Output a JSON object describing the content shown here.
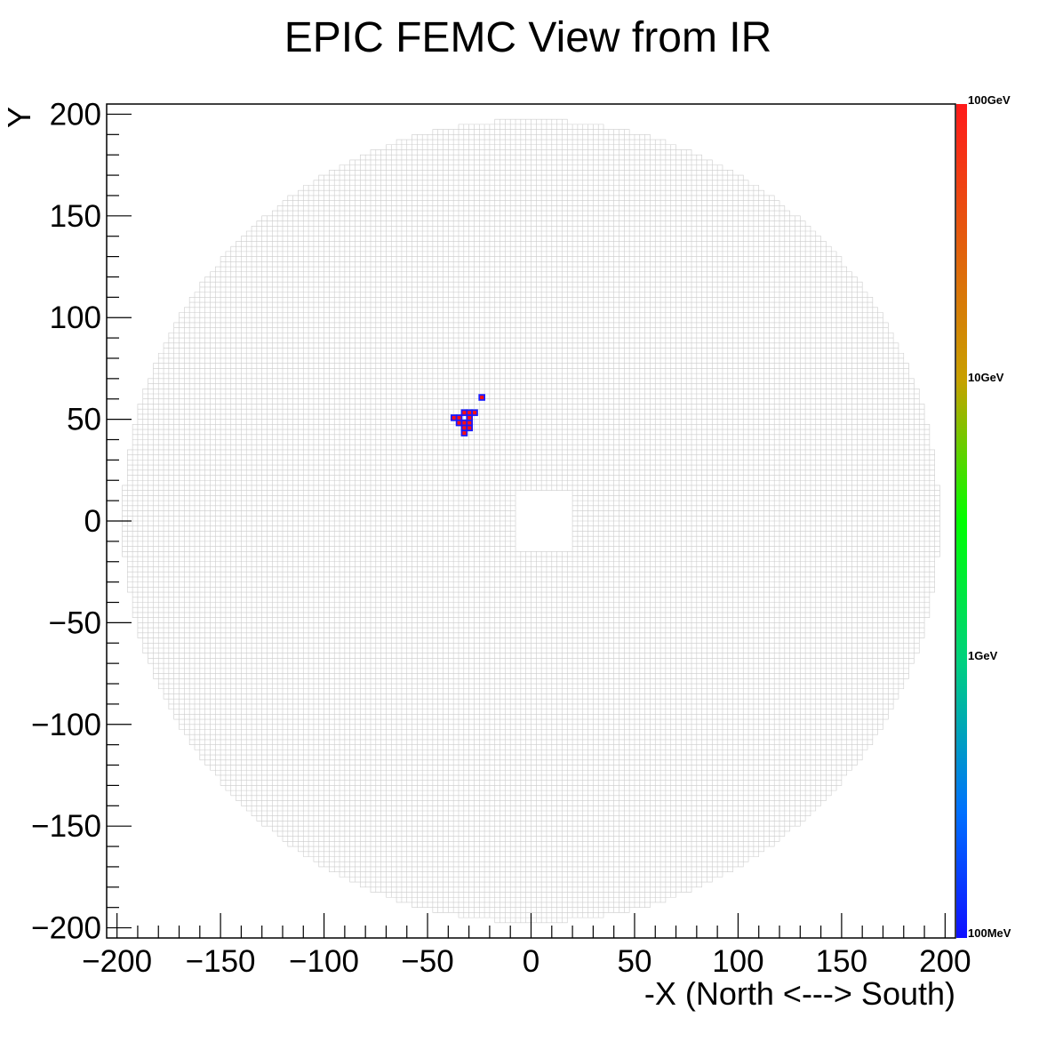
{
  "chart_data": {
    "type": "heatmap",
    "title": "EPIC FEMC View from IR",
    "xlabel": "-X (North <---> South)",
    "ylabel": "Y",
    "xlim": [
      -205,
      205
    ],
    "ylim": [
      -205,
      205
    ],
    "x_ticks": [
      -200,
      -150,
      -100,
      -50,
      0,
      50,
      100,
      150,
      200
    ],
    "y_ticks": [
      -200,
      -150,
      -100,
      -50,
      0,
      50,
      100,
      150,
      200
    ],
    "x_tick_labels": [
      "−200",
      "−150",
      "−100",
      "−50",
      "0",
      "50",
      "100",
      "150",
      "200"
    ],
    "y_tick_labels": [
      "−200",
      "−150",
      "−100",
      "−50",
      "0",
      "50",
      "100",
      "150",
      "200"
    ],
    "grid": false,
    "detector": {
      "cell_size": 2.5,
      "outer_radius": 197,
      "beam_hole": {
        "x": [
          -8,
          20
        ],
        "y": [
          -15,
          15
        ]
      },
      "cell_color": "#cccccc"
    },
    "hits": [
      {
        "x": -38.5,
        "y": 49.5,
        "energy": "high"
      },
      {
        "x": -36.0,
        "y": 49.5,
        "energy": "high"
      },
      {
        "x": -33.5,
        "y": 52.0,
        "energy": "high"
      },
      {
        "x": -31.0,
        "y": 52.0,
        "energy": "high"
      },
      {
        "x": -28.5,
        "y": 52.0,
        "energy": "high"
      },
      {
        "x": -36.0,
        "y": 47.0,
        "energy": "high"
      },
      {
        "x": -33.5,
        "y": 47.0,
        "energy": "high"
      },
      {
        "x": -31.0,
        "y": 47.0,
        "energy": "high"
      },
      {
        "x": -33.5,
        "y": 44.5,
        "energy": "high"
      },
      {
        "x": -31.0,
        "y": 44.5,
        "energy": "high"
      },
      {
        "x": -33.5,
        "y": 42.0,
        "energy": "high"
      },
      {
        "x": -31.0,
        "y": 49.5,
        "energy": "high"
      },
      {
        "x": -25.0,
        "y": 59.5,
        "energy": "high"
      }
    ],
    "hit_colors": {
      "fill": "#ff1010",
      "stroke": "#1a1aff"
    },
    "colorbar": {
      "scale": "log",
      "labels": [
        "100GeV",
        "10GeV",
        "1GeV",
        "100MeV"
      ],
      "gradient": [
        "#ff1a1a",
        "#c8a000",
        "#00ff00",
        "#00d080",
        "#0070ff",
        "#1010ff"
      ]
    }
  }
}
